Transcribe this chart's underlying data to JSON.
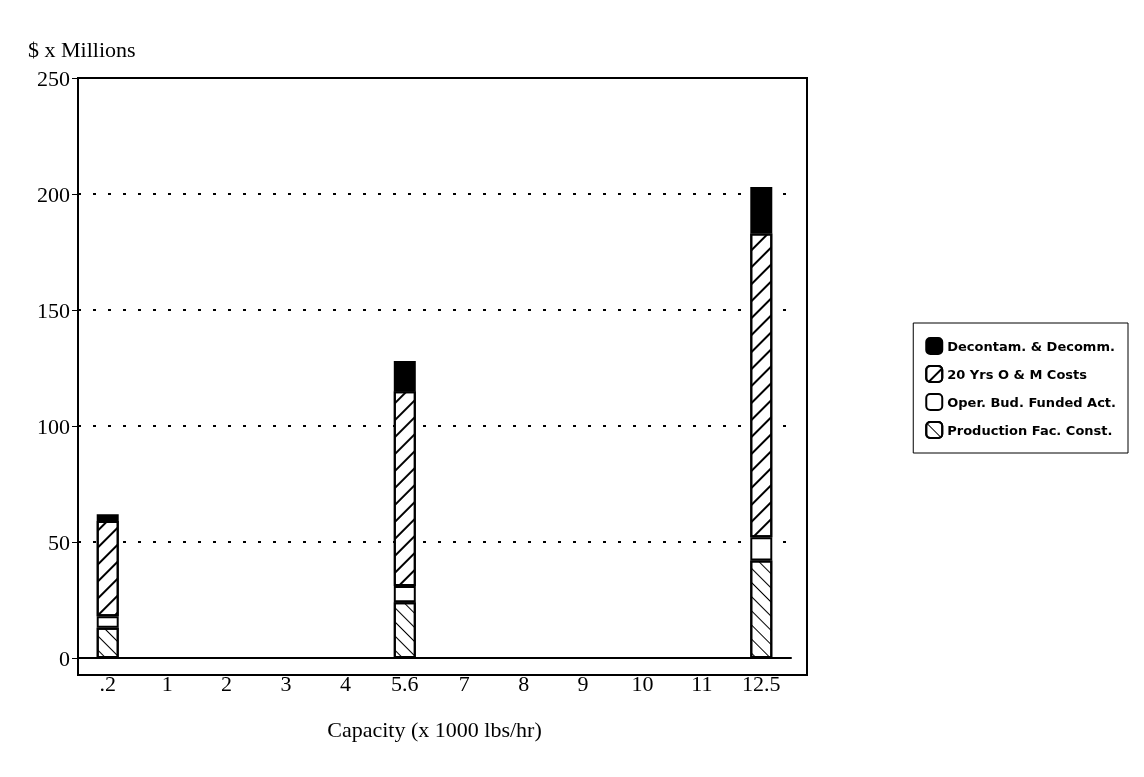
{
  "chart_data": {
    "type": "bar",
    "stacked": true,
    "ylabel": "$ x Millions",
    "xlabel": "Capacity (x 1000 lbs/hr)",
    "categories": [
      ".2",
      "1",
      "2",
      "3",
      "4",
      "5.6",
      "7",
      "8",
      "9",
      "10",
      "11",
      "12.5"
    ],
    "series": [
      {
        "name": "Production Fac. Const.",
        "color": "#ffffff",
        "values": [
          13,
          null,
          null,
          null,
          null,
          24,
          null,
          null,
          null,
          null,
          null,
          42
        ]
      },
      {
        "name": "Oper. Bud. Funded Act.",
        "color": "#ffffff",
        "values": [
          5,
          null,
          null,
          null,
          null,
          7,
          null,
          null,
          null,
          null,
          null,
          10
        ]
      },
      {
        "name": "20 Yrs O & M Costs",
        "color": "#ffffff",
        "values": [
          41,
          null,
          null,
          null,
          null,
          84,
          null,
          null,
          null,
          null,
          null,
          131
        ]
      },
      {
        "name": "Decontam. & Decomm.",
        "color": "#000000",
        "values": [
          3,
          null,
          null,
          null,
          null,
          13,
          null,
          null,
          null,
          null,
          null,
          20
        ]
      }
    ],
    "ylim": [
      0,
      250
    ],
    "yticks": [
      0,
      50,
      100,
      150,
      200,
      250
    ],
    "grid": "y",
    "legend": "right"
  }
}
